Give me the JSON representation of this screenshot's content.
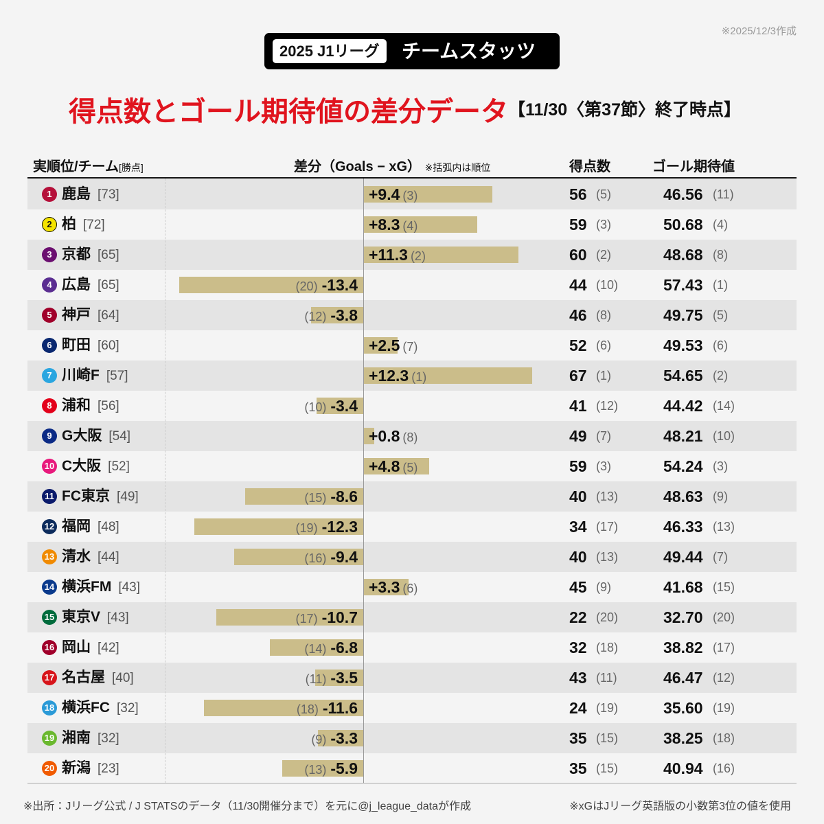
{
  "header": {
    "date": "※2025/12/3作成",
    "badge": "2025 J1リーグ",
    "badge_text": "チームスタッツ",
    "title": "得点数とゴール期待値の差分データ",
    "subtitle": "【11/30〈第37節〉終了時点】"
  },
  "columns": {
    "team": "実順位/チーム",
    "team_note": "[勝点]",
    "diff": "差分（Goals − xG）",
    "diff_note": "※括弧内は順位",
    "goals": "得点数",
    "xg": "ゴール期待値"
  },
  "rows": [
    {
      "rank": 1,
      "color": "#b5103a",
      "team": "鹿島",
      "points": "[73]",
      "diff": 9.4,
      "diff_label": "+9.4",
      "diff_rank": "(3)",
      "goals": 56,
      "goals_rank": "(5)",
      "xg": "46.56",
      "xg_rank": "(11)"
    },
    {
      "rank": 2,
      "color": "#f5e400",
      "team": "柏",
      "points": "[72]",
      "diff": 8.3,
      "diff_label": "+8.3",
      "diff_rank": "(4)",
      "goals": 59,
      "goals_rank": "(3)",
      "xg": "50.68",
      "xg_rank": "(4)"
    },
    {
      "rank": 3,
      "color": "#6b0f70",
      "team": "京都",
      "points": "[65]",
      "diff": 11.3,
      "diff_label": "+11.3",
      "diff_rank": "(2)",
      "goals": 60,
      "goals_rank": "(2)",
      "xg": "48.68",
      "xg_rank": "(8)"
    },
    {
      "rank": 4,
      "color": "#5a2d91",
      "team": "広島",
      "points": "[65]",
      "diff": -13.4,
      "diff_rank": "(20)",
      "goals": 44,
      "goals_rank": "(10)",
      "xg": "57.43",
      "xg_rank": "(1)"
    },
    {
      "rank": 5,
      "color": "#a0002a",
      "team": "神戸",
      "points": "[64]",
      "diff": -3.8,
      "diff_rank": "(12)",
      "goals": 46,
      "goals_rank": "(8)",
      "xg": "49.75",
      "xg_rank": "(5)"
    },
    {
      "rank": 6,
      "color": "#0a2870",
      "team": "町田",
      "points": "[60]",
      "diff": 2.5,
      "diff_label": "+2.5",
      "diff_rank": "(7)",
      "goals": 52,
      "goals_rank": "(6)",
      "xg": "49.53",
      "xg_rank": "(6)"
    },
    {
      "rank": 7,
      "color": "#2aa6e0",
      "team": "川崎F",
      "points": "[57]",
      "diff": 12.3,
      "diff_label": "+12.3",
      "diff_rank": "(1)",
      "goals": 67,
      "goals_rank": "(1)",
      "xg": "54.65",
      "xg_rank": "(2)"
    },
    {
      "rank": 8,
      "color": "#e3001b",
      "team": "浦和",
      "points": "[56]",
      "diff": -3.4,
      "diff_rank": "(10)",
      "goals": 41,
      "goals_rank": "(12)",
      "xg": "44.42",
      "xg_rank": "(14)"
    },
    {
      "rank": 9,
      "color": "#0b2a85",
      "team": "G大阪",
      "points": "[54]",
      "diff": 0.8,
      "diff_label": "+0.8",
      "diff_rank": "(8)",
      "goals": 49,
      "goals_rank": "(7)",
      "xg": "48.21",
      "xg_rank": "(10)"
    },
    {
      "rank": 10,
      "color": "#e8197c",
      "team": "C大阪",
      "points": "[52]",
      "diff": 4.8,
      "diff_label": "+4.8",
      "diff_rank": "(5)",
      "goals": 59,
      "goals_rank": "(3)",
      "xg": "54.24",
      "xg_rank": "(3)"
    },
    {
      "rank": 11,
      "color": "#0a1a6b",
      "team": "FC東京",
      "points": "[49]",
      "diff": -8.6,
      "diff_rank": "(15)",
      "goals": 40,
      "goals_rank": "(13)",
      "xg": "48.63",
      "xg_rank": "(9)"
    },
    {
      "rank": 12,
      "color": "#0c2b5c",
      "team": "福岡",
      "points": "[48]",
      "diff": -12.3,
      "diff_rank": "(19)",
      "goals": 34,
      "goals_rank": "(17)",
      "xg": "46.33",
      "xg_rank": "(13)"
    },
    {
      "rank": 13,
      "color": "#f08a00",
      "team": "清水",
      "points": "[44]",
      "diff": -9.4,
      "diff_rank": "(16)",
      "goals": 40,
      "goals_rank": "(13)",
      "xg": "49.44",
      "xg_rank": "(7)"
    },
    {
      "rank": 14,
      "color": "#0a3a8c",
      "team": "横浜FM",
      "points": "[43]",
      "diff": 3.3,
      "diff_label": "+3.3",
      "diff_rank": "(6)",
      "goals": 45,
      "goals_rank": "(9)",
      "xg": "41.68",
      "xg_rank": "(15)"
    },
    {
      "rank": 15,
      "color": "#006b3c",
      "team": "東京V",
      "points": "[43]",
      "diff": -10.7,
      "diff_rank": "(17)",
      "goals": 22,
      "goals_rank": "(20)",
      "xg": "32.70",
      "xg_rank": "(20)"
    },
    {
      "rank": 16,
      "color": "#a0002a",
      "team": "岡山",
      "points": "[42]",
      "diff": -6.8,
      "diff_rank": "(14)",
      "goals": 32,
      "goals_rank": "(18)",
      "xg": "38.82",
      "xg_rank": "(17)"
    },
    {
      "rank": 17,
      "color": "#d7141a",
      "team": "名古屋",
      "points": "[40]",
      "diff": -3.5,
      "diff_rank": "(11)",
      "goals": 43,
      "goals_rank": "(11)",
      "xg": "46.47",
      "xg_rank": "(12)"
    },
    {
      "rank": 18,
      "color": "#2a9ad7",
      "team": "横浜FC",
      "points": "[32]",
      "diff": -11.6,
      "diff_rank": "(18)",
      "goals": 24,
      "goals_rank": "(19)",
      "xg": "35.60",
      "xg_rank": "(19)"
    },
    {
      "rank": 19,
      "color": "#6ab82e",
      "team": "湘南",
      "points": "[32]",
      "diff": -3.3,
      "diff_rank": "(9)",
      "goals": 35,
      "goals_rank": "(15)",
      "xg": "38.25",
      "xg_rank": "(18)"
    },
    {
      "rank": 20,
      "color": "#f05a00",
      "team": "新潟",
      "points": "[23]",
      "diff": -5.9,
      "diff_rank": "(13)",
      "goals": 35,
      "goals_rank": "(15)",
      "xg": "40.94",
      "xg_rank": "(16)"
    }
  ],
  "footer": {
    "source": "※出所：Jリーグ公式 / J STATSのデータ（11/30開催分まで）を元に@j_league_dataが作成",
    "note": "※xGはJリーグ英語版の小数第3位の値を使用"
  }
}
